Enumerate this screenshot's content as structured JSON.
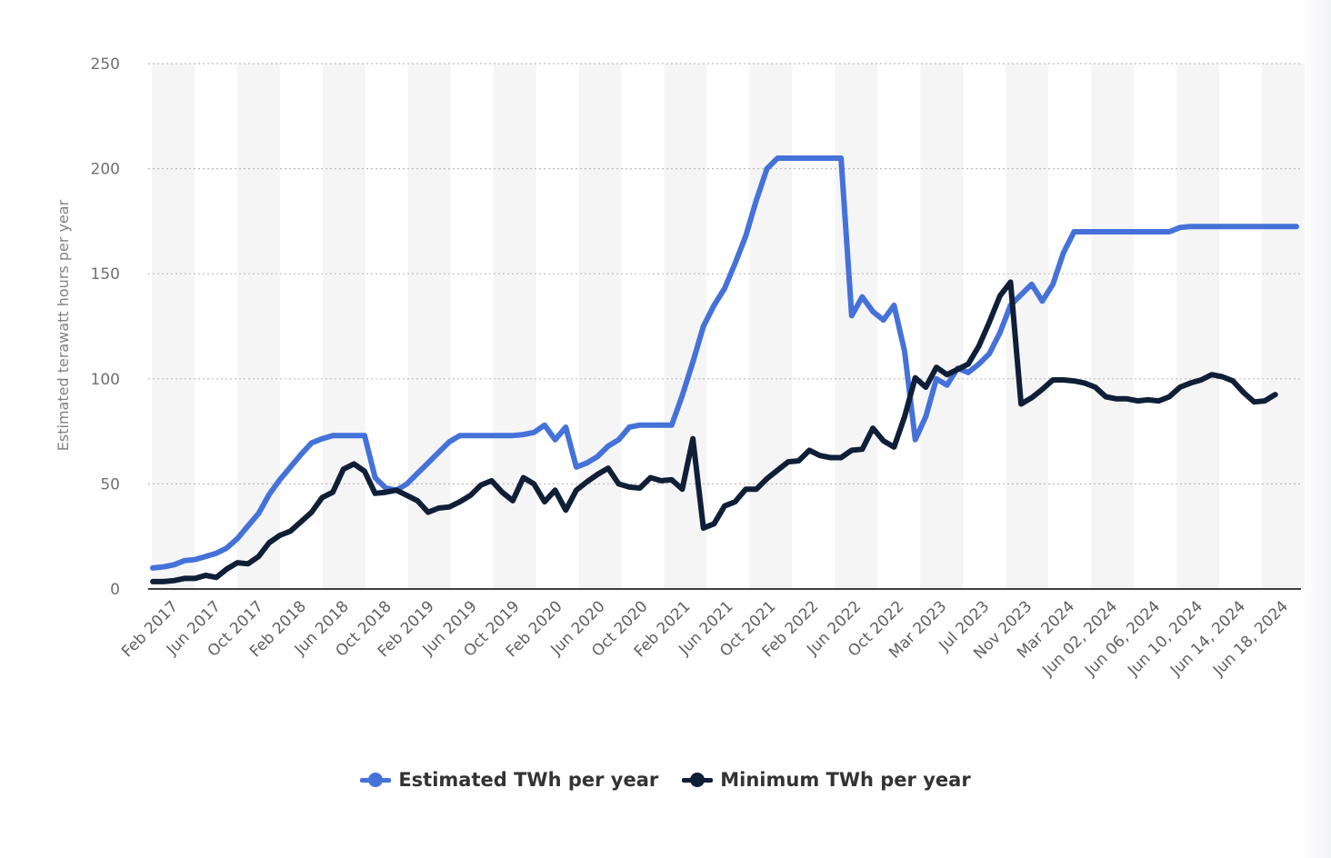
{
  "colors": {
    "estimated": "#4472d9",
    "minimum": "#0f1f38",
    "band": "#f5f5f5",
    "grid": "#bdbdbd",
    "axis": "#000000"
  },
  "chart_data": {
    "type": "line",
    "title": "",
    "xlabel": "",
    "ylabel": "Estimated terawatt hours per year",
    "ylim": [
      0,
      250
    ],
    "yticks": [
      0,
      50,
      100,
      150,
      200,
      250
    ],
    "grid": true,
    "legend_position": "bottom-center",
    "x_tick_labels": [
      "Feb 2017",
      "Jun 2017",
      "Oct 2017",
      "Feb 2018",
      "Jun 2018",
      "Oct 2018",
      "Feb 2019",
      "Jun 2019",
      "Oct 2019",
      "Feb 2020",
      "Jun 2020",
      "Oct 2020",
      "Feb 2021",
      "Jun 2021",
      "Oct 2021",
      "Feb 2022",
      "Jun 2022",
      "Oct 2022",
      "Mar 2023",
      "Jul 2023",
      "Nov 2023",
      "Mar 2024",
      "Jun 02, 2024",
      "Jun 06, 2024",
      "Jun 10, 2024",
      "Jun 14, 2024",
      "Jun 18, 2024"
    ],
    "series": [
      {
        "name": "Estimated TWh per year",
        "values": [
          10,
          10.5,
          11.5,
          13.5,
          14,
          15.5,
          17,
          19.5,
          24,
          30,
          36,
          45,
          52,
          58,
          64,
          69.5,
          71.5,
          73,
          73,
          73,
          73,
          53,
          48,
          47,
          50,
          55,
          60,
          65,
          70,
          73,
          73,
          73,
          73,
          73,
          73,
          73.5,
          74.5,
          78,
          71,
          77,
          58,
          60,
          63,
          68,
          71,
          77,
          78,
          78,
          78,
          78,
          92,
          108,
          125,
          135,
          143,
          155,
          168,
          185,
          200,
          205,
          205,
          205,
          205,
          205,
          205,
          205,
          130,
          139,
          132,
          128,
          135,
          113,
          71,
          82,
          100,
          97,
          105,
          103,
          107,
          112,
          122,
          135,
          140,
          145,
          137,
          145,
          160,
          170,
          170,
          170,
          170,
          170,
          170,
          170,
          170,
          170,
          170,
          172,
          172.5,
          172.5,
          172.5,
          172.5,
          172.5,
          172.5,
          172.5,
          172.5,
          172.5,
          172.5,
          172.5
        ]
      },
      {
        "name": "Minimum TWh per year",
        "values": [
          3.5,
          3.5,
          4,
          5,
          5,
          6.5,
          5.5,
          9.5,
          12.5,
          12,
          15.5,
          22,
          25.5,
          27.5,
          32,
          36.5,
          43.5,
          46,
          57,
          59.5,
          56,
          45.5,
          46,
          47,
          44.5,
          42,
          36.5,
          38.5,
          39,
          41.5,
          44.5,
          49.5,
          51.5,
          46,
          42,
          53,
          50,
          41.5,
          47,
          37.5,
          47,
          51,
          54.5,
          57.5,
          50,
          48.5,
          48,
          53,
          51.5,
          52,
          47.5,
          71.5,
          29,
          31,
          39.5,
          41.5,
          47.5,
          47.5,
          52.5,
          56.5,
          60.5,
          61,
          66,
          63.5,
          62.5,
          62.5,
          66,
          66.5,
          76.5,
          70.5,
          67.5,
          82,
          100.5,
          96,
          105.5,
          102,
          104.5,
          107,
          115.5,
          127,
          139.5,
          146,
          88,
          91,
          95,
          99.5,
          99.5,
          99,
          98,
          96,
          91.5,
          90.5,
          90.5,
          89.5,
          90,
          89.5,
          91.5,
          96,
          98,
          99.5,
          102,
          101,
          99,
          93.5,
          89,
          89.5,
          92.5
        ]
      }
    ]
  }
}
